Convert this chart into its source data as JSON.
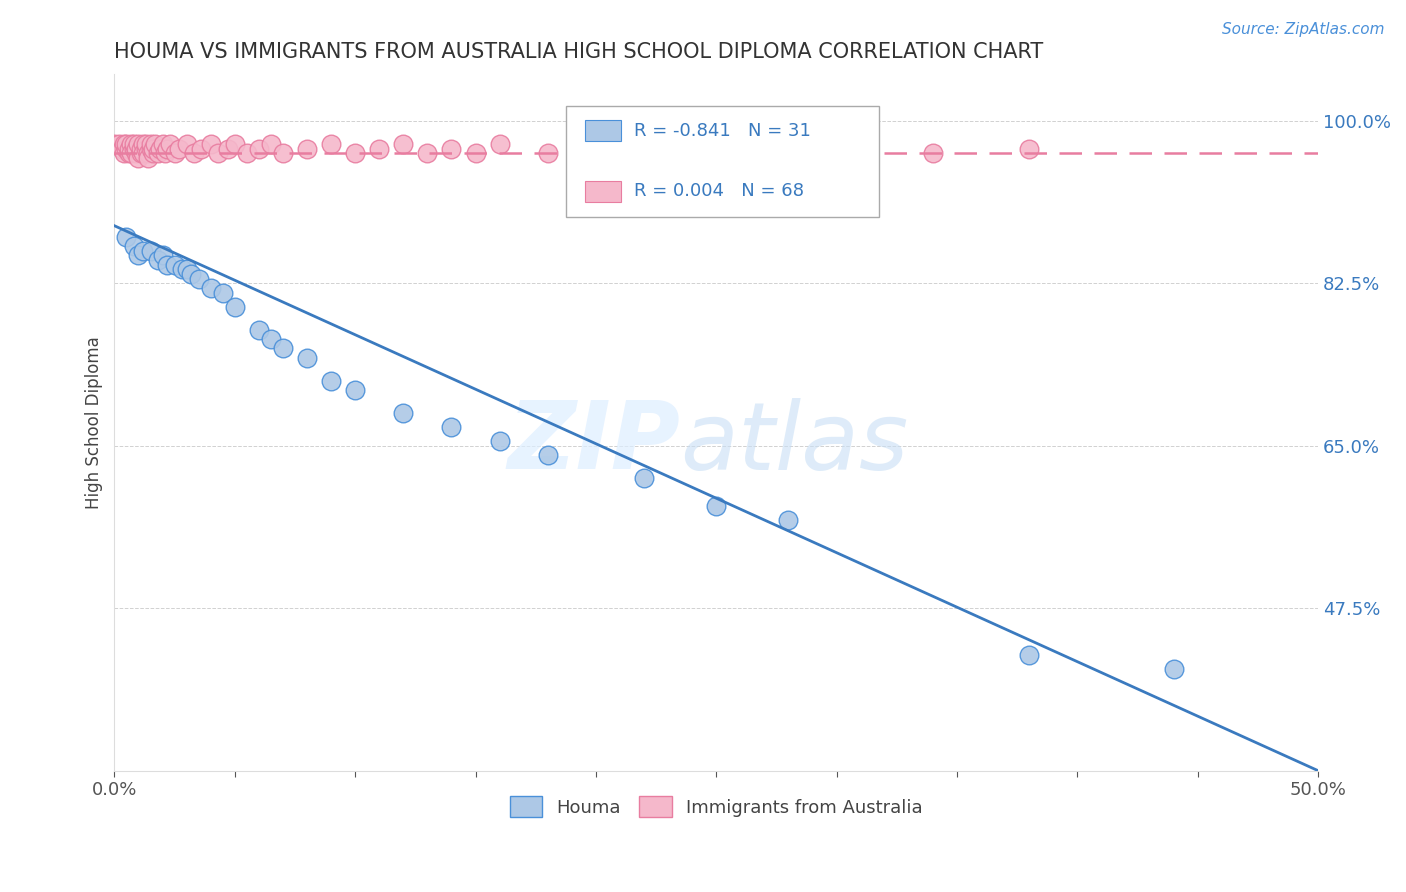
{
  "title": "HOUMA VS IMMIGRANTS FROM AUSTRALIA HIGH SCHOOL DIPLOMA CORRELATION CHART",
  "source": "Source: ZipAtlas.com",
  "ylabel": "High School Diploma",
  "xlim": [
    0.0,
    0.5
  ],
  "ylim": [
    0.3,
    1.05
  ],
  "xtick_positions": [
    0.0,
    0.05,
    0.1,
    0.15,
    0.2,
    0.25,
    0.3,
    0.35,
    0.4,
    0.45,
    0.5
  ],
  "xtick_labels_show": {
    "0.0": "0.0%",
    "0.5": "50.0%"
  },
  "ytick_positions": [
    0.475,
    0.65,
    0.825,
    1.0
  ],
  "ytick_labels": [
    "47.5%",
    "65.0%",
    "82.5%",
    "100.0%"
  ],
  "legend_houma": "Houma",
  "legend_aus": "Immigrants from Australia",
  "r_houma": -0.841,
  "n_houma": 31,
  "r_aus": 0.004,
  "n_aus": 68,
  "houma_color": "#adc8e6",
  "aus_color": "#f5b8cb",
  "houma_edge_color": "#4a90d9",
  "aus_edge_color": "#e87da0",
  "houma_line_color": "#3a7abf",
  "aus_line_color": "#e87da0",
  "watermark_zip_color": "#d8e8f5",
  "watermark_atlas_color": "#c5dff5",
  "background_color": "#ffffff",
  "houma_scatter_x": [
    0.005,
    0.008,
    0.01,
    0.012,
    0.015,
    0.018,
    0.02,
    0.022,
    0.025,
    0.028,
    0.03,
    0.032,
    0.035,
    0.04,
    0.045,
    0.05,
    0.06,
    0.065,
    0.07,
    0.08,
    0.09,
    0.1,
    0.12,
    0.14,
    0.16,
    0.18,
    0.22,
    0.25,
    0.28,
    0.38,
    0.44
  ],
  "houma_scatter_y": [
    0.875,
    0.865,
    0.855,
    0.86,
    0.86,
    0.85,
    0.855,
    0.845,
    0.845,
    0.84,
    0.84,
    0.835,
    0.83,
    0.82,
    0.815,
    0.8,
    0.775,
    0.765,
    0.755,
    0.745,
    0.72,
    0.71,
    0.685,
    0.67,
    0.655,
    0.64,
    0.615,
    0.585,
    0.57,
    0.425,
    0.41
  ],
  "aus_scatter_x": [
    0.0,
    0.002,
    0.003,
    0.004,
    0.004,
    0.005,
    0.005,
    0.006,
    0.006,
    0.007,
    0.007,
    0.008,
    0.008,
    0.009,
    0.009,
    0.01,
    0.01,
    0.011,
    0.011,
    0.012,
    0.012,
    0.013,
    0.013,
    0.014,
    0.014,
    0.015,
    0.015,
    0.016,
    0.016,
    0.017,
    0.018,
    0.019,
    0.02,
    0.021,
    0.022,
    0.023,
    0.025,
    0.027,
    0.03,
    0.033,
    0.036,
    0.04,
    0.043,
    0.047,
    0.05,
    0.055,
    0.06,
    0.065,
    0.07,
    0.08,
    0.09,
    0.1,
    0.11,
    0.12,
    0.13,
    0.14,
    0.15,
    0.16,
    0.18,
    0.2,
    0.22,
    0.25,
    0.28,
    0.31,
    0.34,
    0.38,
    0.28,
    0.25
  ],
  "aus_scatter_y": [
    0.975,
    0.975,
    0.97,
    0.975,
    0.965,
    0.97,
    0.975,
    0.965,
    0.97,
    0.975,
    0.965,
    0.97,
    0.975,
    0.965,
    0.97,
    0.975,
    0.96,
    0.965,
    0.97,
    0.975,
    0.965,
    0.97,
    0.975,
    0.965,
    0.96,
    0.97,
    0.975,
    0.965,
    0.97,
    0.975,
    0.965,
    0.97,
    0.975,
    0.965,
    0.97,
    0.975,
    0.965,
    0.97,
    0.975,
    0.965,
    0.97,
    0.975,
    0.965,
    0.97,
    0.975,
    0.965,
    0.97,
    0.975,
    0.965,
    0.97,
    0.975,
    0.965,
    0.97,
    0.975,
    0.965,
    0.97,
    0.965,
    0.975,
    0.965,
    0.97,
    0.975,
    0.965,
    0.97,
    0.975,
    0.965,
    0.97,
    0.93,
    0.94
  ],
  "houma_line_x": [
    0.0,
    0.5
  ],
  "houma_line_y": [
    0.887,
    0.3
  ],
  "aus_line_y": 0.965,
  "aus_line_x_start": 0.0,
  "aus_line_x_end": 0.5
}
